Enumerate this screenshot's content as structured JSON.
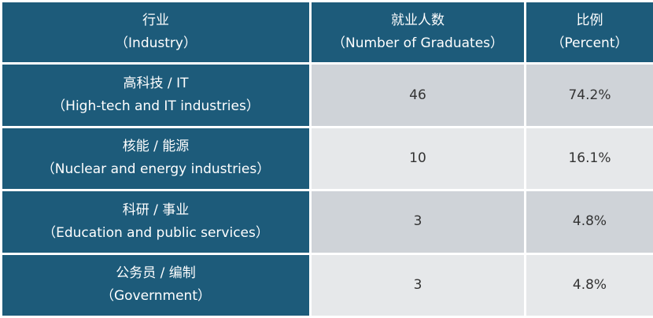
{
  "header": {
    "industry": {
      "zh": "行业",
      "en": "（Industry）"
    },
    "count": {
      "zh": "就业人数",
      "en": "（Number of Graduates）"
    },
    "percent": {
      "zh": "比例",
      "en": "（Percent）"
    }
  },
  "rows": [
    {
      "zh": "高科技 / IT",
      "en": "（High-tech and IT industries）",
      "count": "46",
      "percent": "74.2%"
    },
    {
      "zh": "核能 / 能源",
      "en": "（Nuclear and energy industries）",
      "count": "10",
      "percent": "16.1%"
    },
    {
      "zh": "科研 / 事业",
      "en": "（Education and public services）",
      "count": "3",
      "percent": "4.8%"
    },
    {
      "zh": "公务员 / 编制",
      "en": "（Government）",
      "count": "3",
      "percent": "4.8%"
    }
  ],
  "colors": {
    "header_bg": "#1d5b7a",
    "row_bg_odd": "#cfd3d8",
    "row_bg_even": "#e6e8ea"
  },
  "chart_data": {
    "type": "table",
    "columns": [
      "行业（Industry）",
      "就业人数（Number of Graduates）",
      "比例（Percent）"
    ],
    "rows": [
      [
        "高科技 / IT（High-tech and IT industries）",
        46,
        "74.2%"
      ],
      [
        "核能 / 能源（Nuclear and energy industries）",
        10,
        "16.1%"
      ],
      [
        "科研 / 事业（Education and public services）",
        3,
        "4.8%"
      ],
      [
        "公务员 / 编制（Government）",
        3,
        "4.8%"
      ]
    ]
  }
}
